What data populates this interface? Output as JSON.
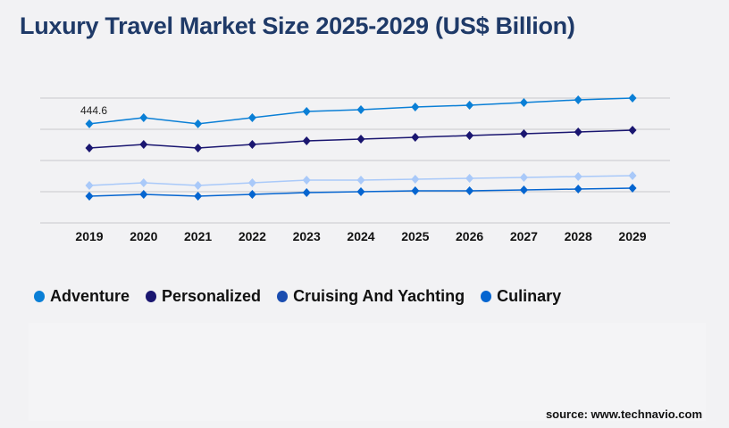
{
  "chart_data": {
    "type": "line",
    "title": "Luxury Travel Market Size 2025-2029 (US$ Billion)",
    "categories": [
      "2019",
      "2020",
      "2021",
      "2022",
      "2023",
      "2024",
      "2025",
      "2026",
      "2027",
      "2028",
      "2029"
    ],
    "ylim": [
      0,
      560
    ],
    "grid": true,
    "legend": "bottom-left",
    "series": [
      {
        "name": "Adventure",
        "color": "#0a7fd6",
        "line_color": "#0a7fd6",
        "values": [
          444.6,
          472,
          444.6,
          472,
          500,
          508,
          520,
          528,
          540,
          552,
          560
        ]
      },
      {
        "name": "Personalized",
        "color": "#1a1670",
        "line_color": "#1a1670",
        "values": [
          336,
          352,
          336,
          352,
          368,
          376,
          384,
          392,
          400,
          408,
          416
        ]
      },
      {
        "name": "Cruising And Yachting",
        "color": "#1a4db0",
        "line_color": "#a9c9f9",
        "values": [
          168,
          180,
          168,
          180,
          192,
          192,
          196,
          200,
          204,
          208,
          212
        ]
      },
      {
        "name": "Culinary",
        "color": "#0565d0",
        "line_color": "#0565d0",
        "values": [
          120,
          128,
          120,
          128,
          136,
          140,
          144,
          144,
          148,
          152,
          156
        ]
      }
    ],
    "data_labels": [
      {
        "series": "Adventure",
        "category": "2019",
        "text": "444.6"
      }
    ]
  },
  "source": "source: www.technavio.com"
}
